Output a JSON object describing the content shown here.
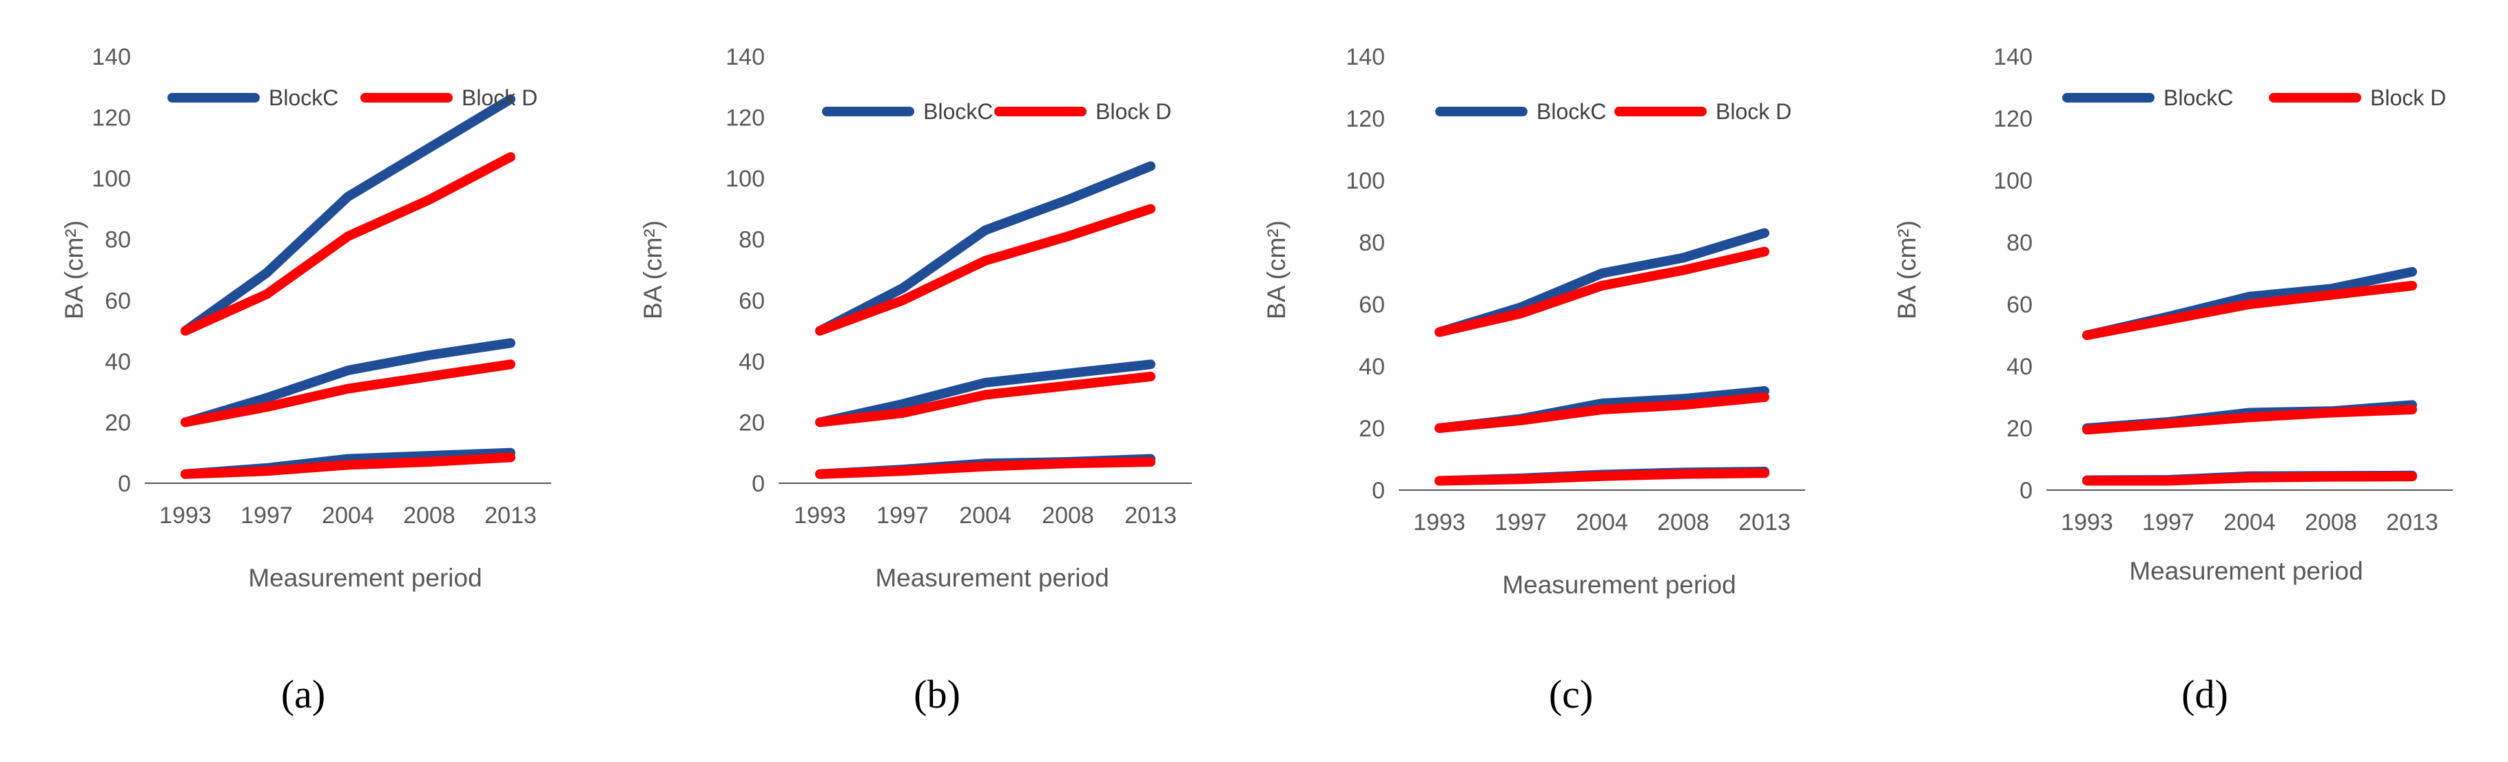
{
  "colors": {
    "blockC": "#1F4E96",
    "blockD": "#FF0000",
    "axis": "#595959"
  },
  "chart_data": [
    {
      "type": "line",
      "panel": "(a)",
      "xlabel": "Measurement period",
      "ylabel": "BA (cm²)",
      "categories": [
        "1993",
        "1997",
        "2004",
        "2008",
        "2013"
      ],
      "ylim": [
        0,
        140
      ],
      "yticks": [
        0,
        20,
        40,
        60,
        80,
        100,
        120,
        140
      ],
      "legend": [
        "BlockC",
        "Block D"
      ],
      "series": [
        {
          "name": "BlockC",
          "group": "high",
          "values": [
            50,
            69,
            94,
            110,
            126
          ]
        },
        {
          "name": "Block D",
          "group": "high",
          "values": [
            50,
            62,
            81,
            93,
            107
          ]
        },
        {
          "name": "BlockC",
          "group": "mid",
          "values": [
            20,
            28,
            37,
            42,
            46
          ]
        },
        {
          "name": "Block D",
          "group": "mid",
          "values": [
            20,
            25,
            31,
            35,
            39
          ]
        },
        {
          "name": "BlockC",
          "group": "low",
          "values": [
            3,
            5,
            8,
            9,
            10
          ]
        },
        {
          "name": "Block D",
          "group": "low",
          "values": [
            3,
            4,
            6,
            7,
            8.5
          ]
        }
      ]
    },
    {
      "type": "line",
      "panel": "(b)",
      "xlabel": "Measurement period",
      "ylabel": "BA (cm²)",
      "categories": [
        "1993",
        "1997",
        "2004",
        "2008",
        "2013"
      ],
      "ylim": [
        0,
        140
      ],
      "yticks": [
        0,
        20,
        40,
        60,
        80,
        100,
        120,
        140
      ],
      "legend": [
        "BlockC",
        "Block D"
      ],
      "series": [
        {
          "name": "BlockC",
          "group": "high",
          "values": [
            50,
            64,
            83,
            93,
            104
          ]
        },
        {
          "name": "Block D",
          "group": "high",
          "values": [
            50,
            60,
            73,
            81,
            90
          ]
        },
        {
          "name": "BlockC",
          "group": "mid",
          "values": [
            20,
            26,
            33,
            36,
            39
          ]
        },
        {
          "name": "Block D",
          "group": "mid",
          "values": [
            20,
            23,
            29,
            32,
            35
          ]
        },
        {
          "name": "BlockC",
          "group": "low",
          "values": [
            3,
            4.5,
            6.5,
            7,
            8
          ]
        },
        {
          "name": "Block D",
          "group": "low",
          "values": [
            3,
            4,
            5.5,
            6.5,
            7
          ]
        }
      ]
    },
    {
      "type": "line",
      "panel": "(c)",
      "xlabel": "Measurement period",
      "ylabel": "BA (cm²)",
      "categories": [
        "1993",
        "1997",
        "2004",
        "2008",
        "2013"
      ],
      "ylim": [
        0,
        140
      ],
      "yticks": [
        0,
        20,
        40,
        60,
        80,
        100,
        120,
        140
      ],
      "legend": [
        "BlockC",
        "Block D"
      ],
      "series": [
        {
          "name": "BlockC",
          "group": "high",
          "values": [
            51,
            59,
            70,
            75,
            83
          ]
        },
        {
          "name": "Block D",
          "group": "high",
          "values": [
            51,
            57,
            66,
            71,
            77
          ]
        },
        {
          "name": "BlockC",
          "group": "mid",
          "values": [
            20,
            23,
            28,
            29.5,
            32
          ]
        },
        {
          "name": "Block D",
          "group": "mid",
          "values": [
            20,
            22.5,
            26,
            27.5,
            30
          ]
        },
        {
          "name": "BlockC",
          "group": "low",
          "values": [
            3,
            3.8,
            5,
            5.7,
            6
          ]
        },
        {
          "name": "Block D",
          "group": "low",
          "values": [
            3,
            3.5,
            4.5,
            5.2,
            5.5
          ]
        }
      ]
    },
    {
      "type": "line",
      "panel": "(d)",
      "xlabel": "Measurement period",
      "ylabel": "BA (cm²)",
      "categories": [
        "1993",
        "1997",
        "2004",
        "2008",
        "2013"
      ],
      "ylim": [
        0,
        140
      ],
      "yticks": [
        0,
        20,
        40,
        60,
        80,
        100,
        120,
        140
      ],
      "legend": [
        "BlockC",
        "Block D"
      ],
      "series": [
        {
          "name": "BlockC",
          "group": "high",
          "values": [
            50,
            56,
            62.5,
            65,
            70.5
          ]
        },
        {
          "name": "Block D",
          "group": "high",
          "values": [
            50,
            55,
            60,
            63,
            66
          ]
        },
        {
          "name": "BlockC",
          "group": "mid",
          "values": [
            20,
            22,
            25,
            25.5,
            27.5
          ]
        },
        {
          "name": "Block D",
          "group": "mid",
          "values": [
            19.5,
            21.5,
            23.5,
            25,
            26
          ]
        },
        {
          "name": "BlockC",
          "group": "low",
          "values": [
            3.2,
            3.3,
            4.5,
            4.6,
            4.7
          ]
        },
        {
          "name": "Block D",
          "group": "low",
          "values": [
            3,
            3,
            4,
            4.3,
            4.4
          ]
        }
      ]
    }
  ]
}
